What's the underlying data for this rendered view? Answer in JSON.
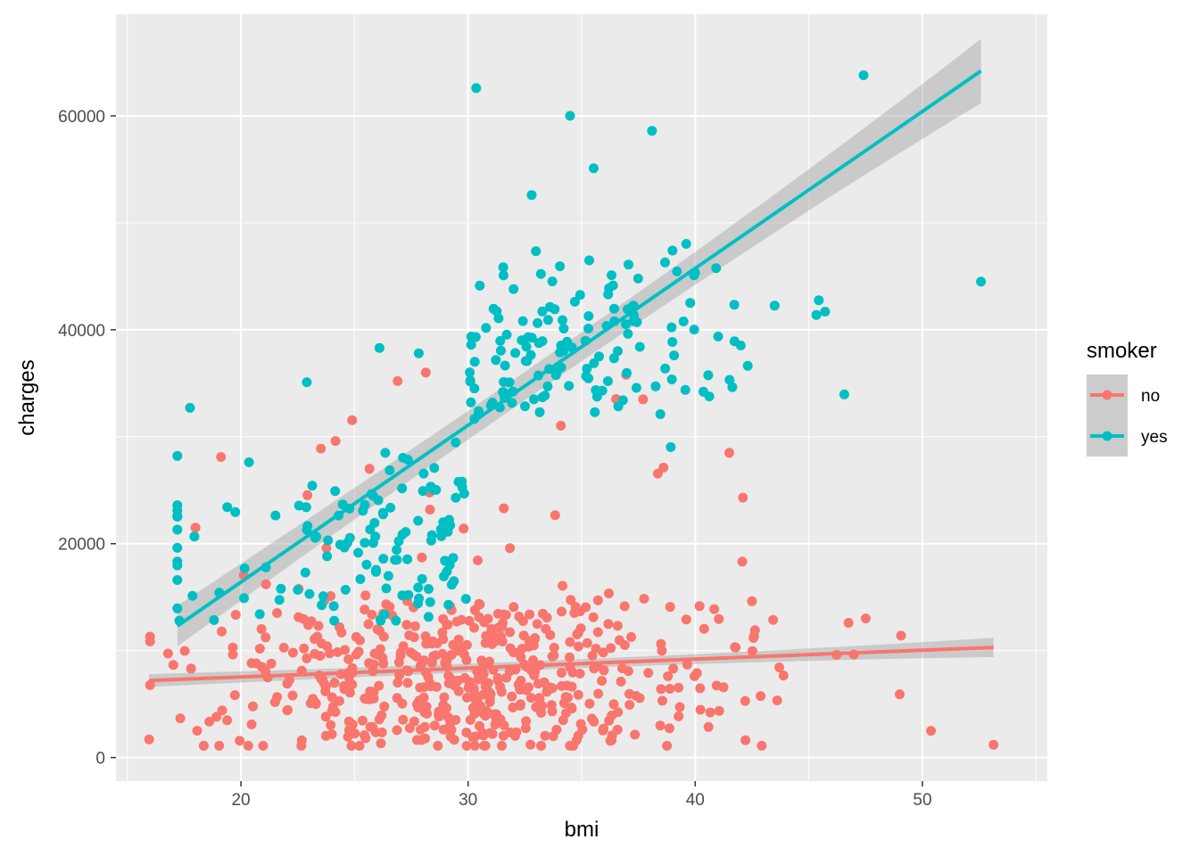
{
  "chart_data": {
    "type": "scatter",
    "xlabel": "bmi",
    "ylabel": "charges",
    "xlim": [
      14.5,
      55.5
    ],
    "ylim": [
      -2200,
      69500
    ],
    "x_ticks": [
      20,
      30,
      40,
      50
    ],
    "x_tick_labels": [
      "20",
      "30",
      "40",
      "50"
    ],
    "y_ticks": [
      0,
      20000,
      40000,
      60000
    ],
    "y_tick_labels": [
      "0",
      "20000",
      "40000",
      "60000"
    ],
    "grid": true,
    "background": "#ebebeb",
    "legend": {
      "title": "smoker",
      "placement": "right",
      "entries": [
        "no",
        "yes"
      ]
    },
    "series": [
      {
        "name": "no",
        "color": "#F8766D",
        "fit": {
          "x": [
            15.96,
            53.13
          ],
          "y": [
            7200,
            10300
          ],
          "se": [
            600,
            900
          ]
        },
        "points": {
          "x_range": [
            15.96,
            53.13
          ],
          "y_range": [
            1100,
            36000
          ],
          "n": 560,
          "seed": 11
        }
      },
      {
        "name": "yes",
        "color": "#00BFC4",
        "fit": {
          "x": [
            17.2,
            52.58
          ],
          "y": [
            12300,
            64200
          ],
          "se": [
            1900,
            3000
          ]
        },
        "points": {
          "x_range": [
            17.2,
            52.58
          ],
          "y_range": [
            12800,
            63800
          ],
          "n": 274,
          "seed": 23
        }
      }
    ],
    "highlighted_points": {
      "no": [
        [
          53.13,
          1200
        ],
        [
          50.38,
          2500
        ],
        [
          26.9,
          35200
        ],
        [
          37.7,
          33500
        ],
        [
          18.0,
          21500
        ],
        [
          41.5,
          28500
        ],
        [
          42.1,
          24300
        ],
        [
          49.06,
          11400
        ],
        [
          46.75,
          12600
        ],
        [
          15.96,
          1700
        ]
      ],
      "yes": [
        [
          47.41,
          63800
        ],
        [
          30.36,
          62600
        ],
        [
          34.49,
          60000
        ],
        [
          38.1,
          58600
        ],
        [
          35.53,
          55100
        ],
        [
          32.8,
          52600
        ],
        [
          52.58,
          44500
        ],
        [
          17.76,
          32700
        ],
        [
          22.9,
          35100
        ],
        [
          26.1,
          38300
        ],
        [
          27.83,
          37800
        ],
        [
          17.29,
          12800
        ]
      ]
    }
  }
}
